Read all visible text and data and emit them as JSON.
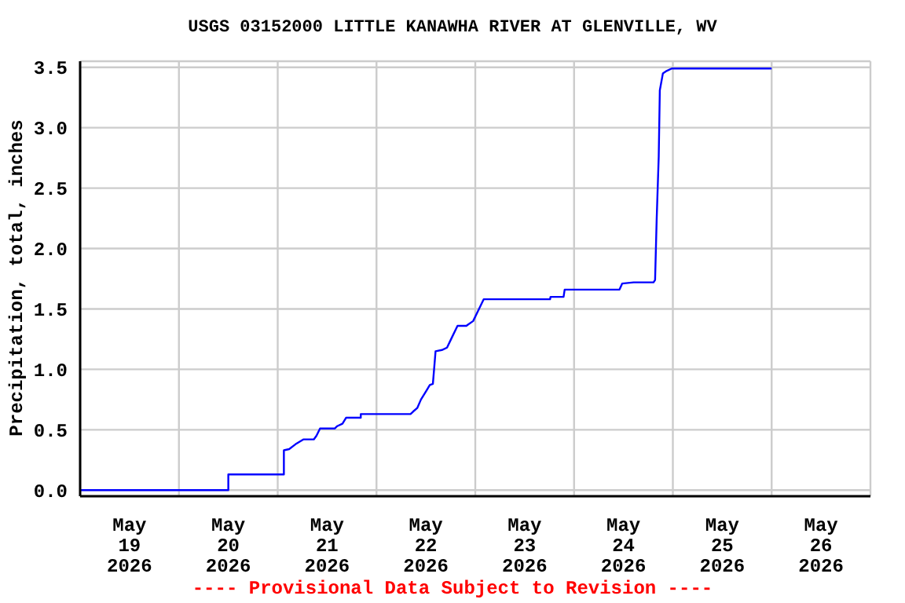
{
  "chart_data": {
    "type": "line",
    "title": "USGS 03152000 LITTLE KANAWHA RIVER AT GLENVILLE, WV",
    "ylabel": "Precipitation, total, inches",
    "annotations": [
      "---- Provisional Data Subject to Revision ----"
    ],
    "x": [
      "2026-05-19T00:00",
      "2026-05-20T12:00",
      "2026-05-20T12:00",
      "2026-05-21T01:30",
      "2026-05-21T01:30",
      "2026-05-21T02:47",
      "2026-05-21T04:19",
      "2026-05-21T06:13",
      "2026-05-21T08:46",
      "2026-05-21T09:25",
      "2026-05-21T10:17",
      "2026-05-21T13:50",
      "2026-05-21T14:28",
      "2026-05-21T15:44",
      "2026-05-21T16:38",
      "2026-05-21T20:11",
      "2026-05-21T20:11",
      "2026-05-22T08:16",
      "2026-05-22T08:53",
      "2026-05-22T09:54",
      "2026-05-22T10:48",
      "2026-05-22T12:04",
      "2026-05-22T12:57",
      "2026-05-22T13:42",
      "2026-05-22T14:21",
      "2026-05-22T15:53",
      "2026-05-22T17:08",
      "2026-05-22T18:24",
      "2026-05-22T19:41",
      "2026-05-22T21:50",
      "2026-05-22T22:13",
      "2026-05-22T23:29",
      "2026-05-23T00:46",
      "2026-05-23T02:02",
      "2026-05-23T18:10",
      "2026-05-23T18:17",
      "2026-05-23T21:27",
      "2026-05-23T21:43",
      "2026-05-24T11:02",
      "2026-05-24T11:41",
      "2026-05-24T14:28",
      "2026-05-24T19:18",
      "2026-05-24T19:41",
      "2026-05-24T20:04",
      "2026-05-24T20:34",
      "2026-05-24T20:50",
      "2026-05-24T21:35",
      "2026-05-24T22:29",
      "2026-05-24T23:44",
      "2026-05-26T00:00"
    ],
    "series": [
      {
        "color": "#0000ff",
        "values": [
          0.0,
          0.0,
          0.13,
          0.13,
          0.33,
          0.34,
          0.38,
          0.42,
          0.42,
          0.45,
          0.51,
          0.51,
          0.53,
          0.55,
          0.6,
          0.6,
          0.63,
          0.63,
          0.65,
          0.68,
          0.75,
          0.82,
          0.87,
          0.88,
          1.15,
          1.16,
          1.18,
          1.27,
          1.36,
          1.36,
          1.37,
          1.4,
          1.49,
          1.58,
          1.58,
          1.6,
          1.6,
          1.66,
          1.66,
          1.71,
          1.72,
          1.72,
          1.74,
          2.24,
          2.76,
          3.31,
          3.45,
          3.47,
          3.49,
          3.49
        ]
      }
    ],
    "xlim": [
      "2026-05-19T00:00",
      "2026-05-27T00:00"
    ],
    "xticks": [
      {
        "value": "2026-05-19T00:00",
        "label": null
      },
      {
        "value": "2026-05-19T12:00",
        "label": "May 19 2026"
      },
      {
        "value": "2026-05-20T00:00",
        "label": null
      },
      {
        "value": "2026-05-20T12:00",
        "label": "May 20 2026"
      },
      {
        "value": "2026-05-21T00:00",
        "label": null
      },
      {
        "value": "2026-05-21T12:00",
        "label": "May 21 2026"
      },
      {
        "value": "2026-05-22T00:00",
        "label": null
      },
      {
        "value": "2026-05-22T12:00",
        "label": "May 22 2026"
      },
      {
        "value": "2026-05-23T00:00",
        "label": null
      },
      {
        "value": "2026-05-23T12:00",
        "label": "May 23 2026"
      },
      {
        "value": "2026-05-24T00:00",
        "label": null
      },
      {
        "value": "2026-05-24T12:00",
        "label": "May 24 2026"
      },
      {
        "value": "2026-05-25T00:00",
        "label": null
      },
      {
        "value": "2026-05-25T12:00",
        "label": "May 25 2026"
      },
      {
        "value": "2026-05-26T00:00",
        "label": null
      },
      {
        "value": "2026-05-26T12:00",
        "label": "May 26 2026"
      },
      {
        "value": "2026-05-27T00:00",
        "label": null
      }
    ],
    "ylim": [
      -0.05,
      3.55
    ],
    "yticks": [
      {
        "value": 0,
        "label": "0.0"
      },
      {
        "value": 0.5,
        "label": "0.5"
      },
      {
        "value": 1,
        "label": "1.0"
      },
      {
        "value": 1.5,
        "label": "1.5"
      },
      {
        "value": 2,
        "label": "2.0"
      },
      {
        "value": 2.5,
        "label": "2.5"
      },
      {
        "value": 3,
        "label": "3.0"
      },
      {
        "value": 3.5,
        "label": "3.5"
      }
    ],
    "grid": true,
    "marker": "none",
    "line_style": "solid"
  }
}
